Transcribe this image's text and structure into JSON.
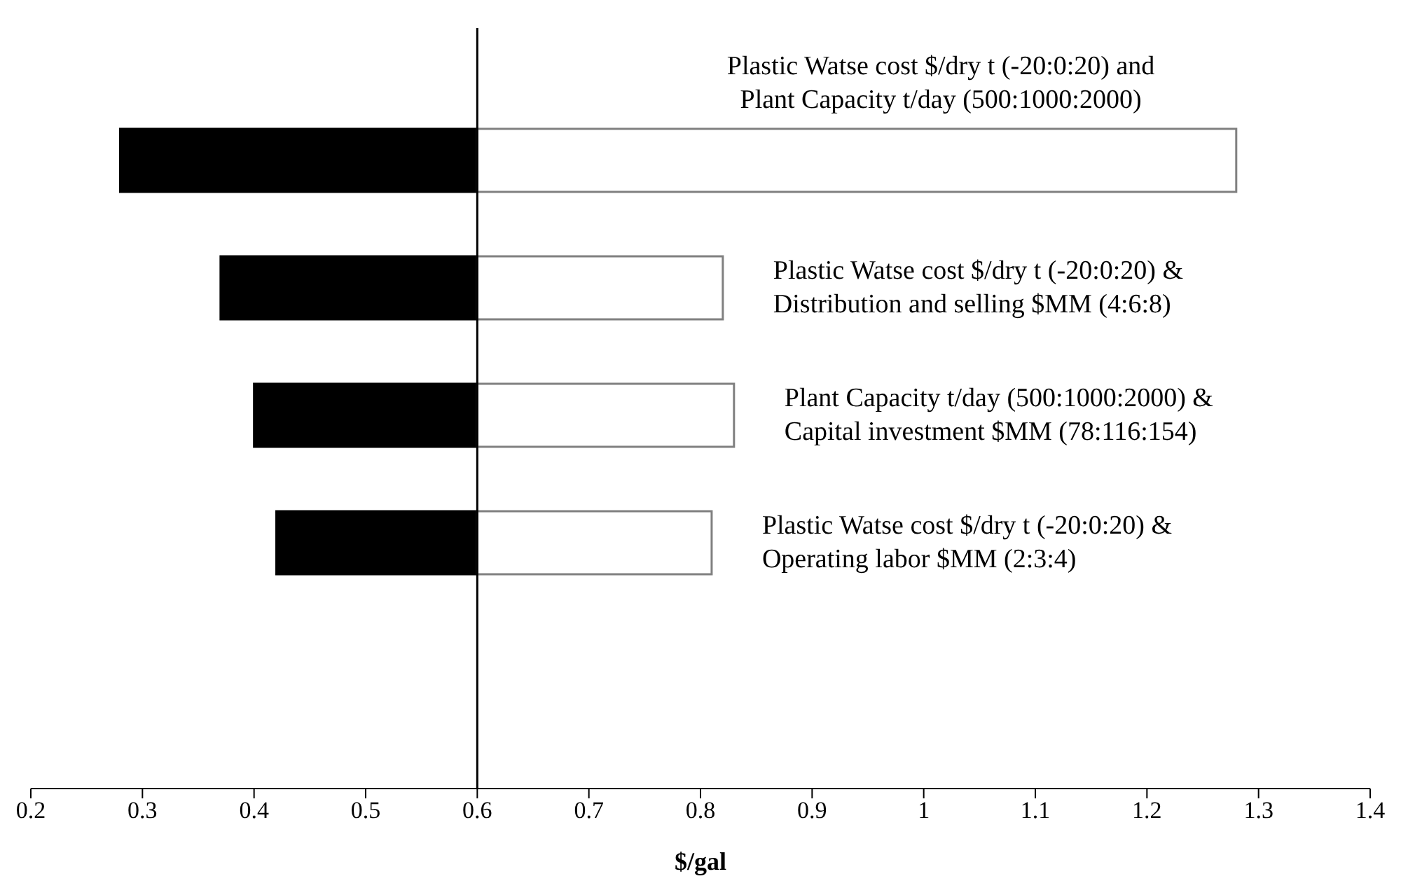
{
  "chart_data": {
    "type": "bar",
    "orientation": "horizontal",
    "xlabel": "$/gal",
    "categories": [
      null,
      null,
      null,
      null,
      null
    ],
    "annotations": [
      "Plastic Watse cost $/dry t (-20:0:20) and\nPlant Capacity t/day (500:1000:2000)",
      "Plastic Watse cost $/dry t (-20:0:20) &\nDistribution and selling $MM (4:6:8)",
      "Plant Capacity t/day (500:1000:2000) &\nCapital investment $MM (78:116:154)",
      "Plastic Watse cost $/dry t (-20:0:20) &\nOperating labor $MM (2:3:4)"
    ],
    "series": [
      {
        "color": "#000000",
        "base": [
          0.28,
          0.37,
          0.4,
          0.42,
          null
        ],
        "values": [
          0.32,
          0.23,
          0.2,
          0.18,
          null
        ]
      },
      {
        "color": "#ffffff",
        "base": [
          0.6,
          0.6,
          0.6,
          0.6,
          null
        ],
        "values": [
          0.68,
          0.22,
          0.23,
          0.21,
          null
        ]
      }
    ],
    "xlim": [
      0.2,
      1.4
    ],
    "xticks": [
      0.2,
      0.3,
      0.4,
      0.5,
      0.6,
      0.7,
      0.8,
      0.9,
      1,
      1.1,
      1.2,
      1.3,
      1.4
    ],
    "ref_lines": [
      {
        "axis": "x",
        "value": 0.6,
        "color": "#000000"
      }
    ],
    "grid": false,
    "legend": false
  }
}
